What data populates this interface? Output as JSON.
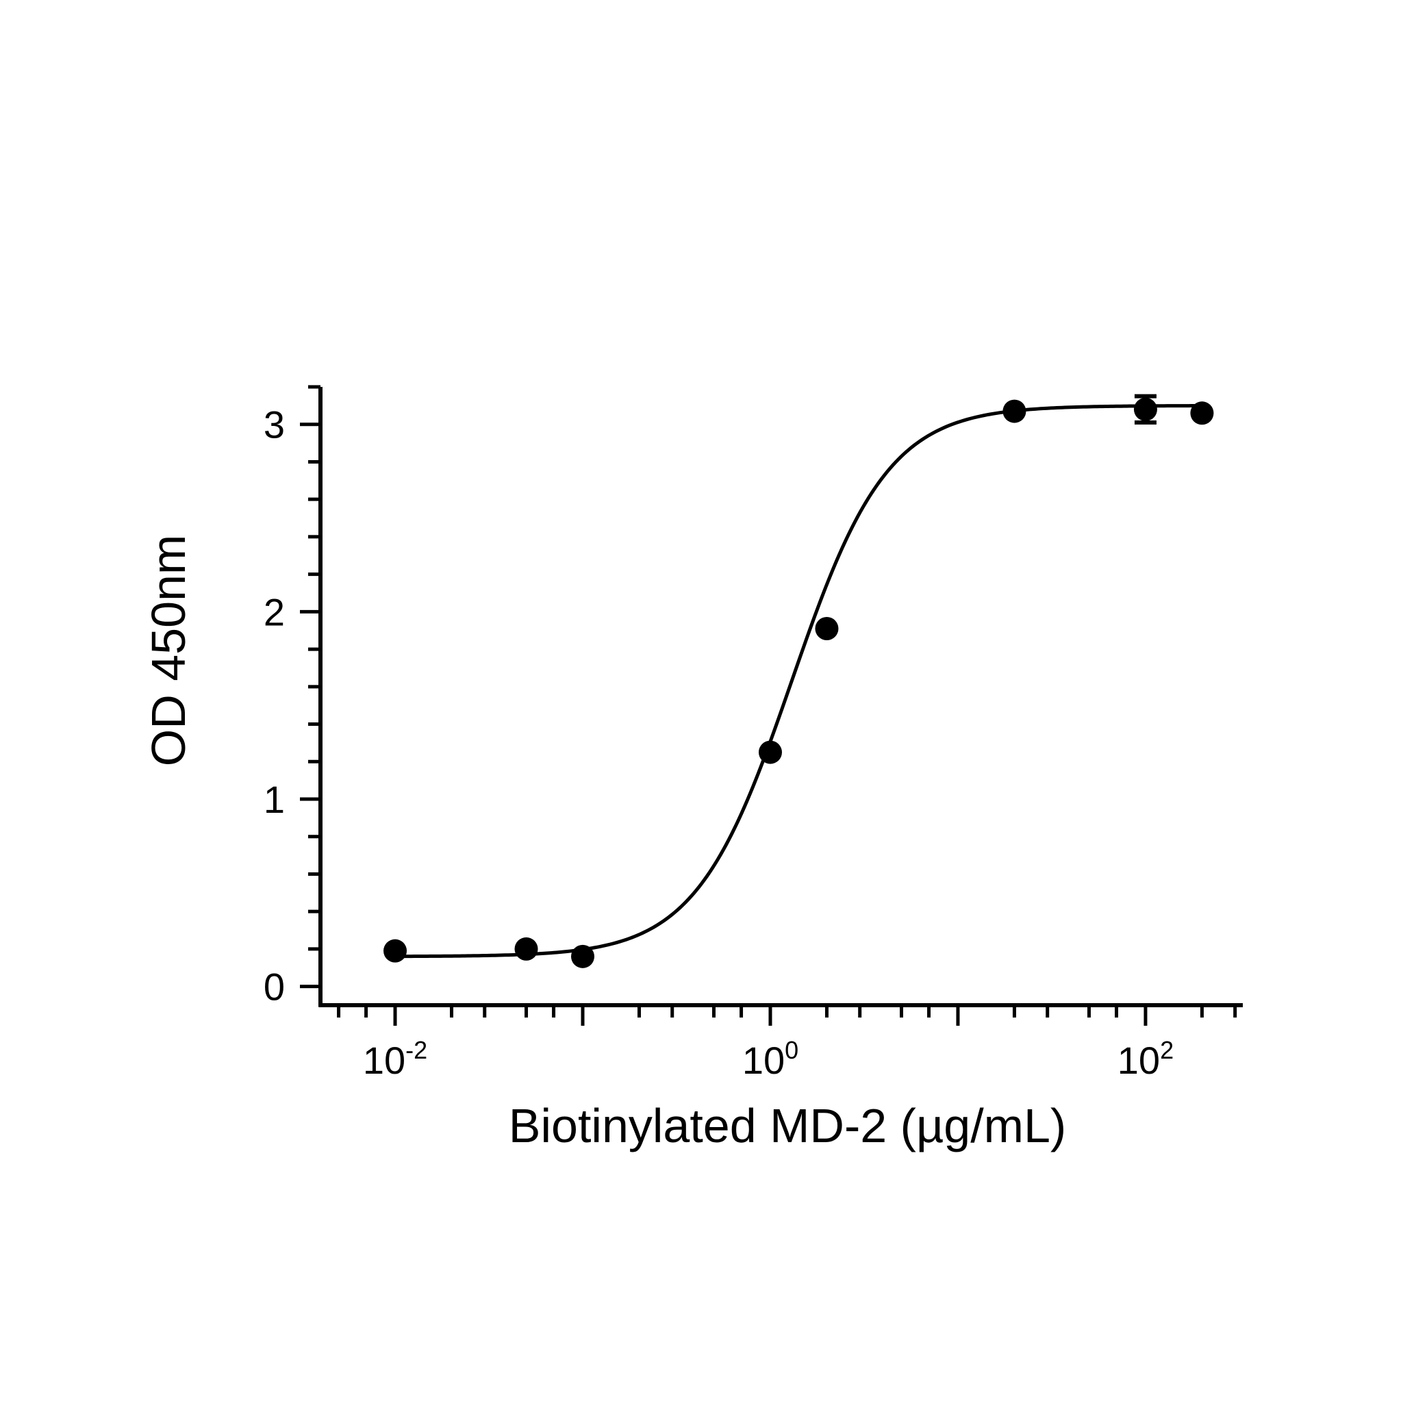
{
  "chart_data": {
    "type": "scatter",
    "xlabel": "Biotinylated MD-2 (µg/mL)",
    "ylabel": "OD 450nm",
    "x_scale": "log",
    "xlim": [
      0.004,
      330
    ],
    "ylim": [
      -0.1,
      3.2
    ],
    "x_ticks": [
      {
        "value": 0.01,
        "base": "10",
        "exp": "-2"
      },
      {
        "value": 1,
        "base": "10",
        "exp": "0"
      },
      {
        "value": 100,
        "base": "10",
        "exp": "2"
      }
    ],
    "y_ticks": [
      "0",
      "1",
      "2",
      "3"
    ],
    "grid": false,
    "legend": "none",
    "colors": {
      "marks": "#000000",
      "background": "#ffffff"
    },
    "series": [
      {
        "points": [
          {
            "x": 0.01,
            "y": 0.19
          },
          {
            "x": 0.05,
            "y": 0.2
          },
          {
            "x": 0.1,
            "y": 0.16
          },
          {
            "x": 1.0,
            "y": 1.25
          },
          {
            "x": 2.0,
            "y": 1.91
          },
          {
            "x": 20.0,
            "y": 3.07
          },
          {
            "x": 100.0,
            "y": 3.08,
            "err": 0.07
          },
          {
            "x": 200.0,
            "y": 3.06
          }
        ],
        "fit": {
          "model": "4PL",
          "bottom": 0.16,
          "top": 3.1,
          "ec50": 1.3,
          "hill": 1.7
        }
      }
    ]
  }
}
